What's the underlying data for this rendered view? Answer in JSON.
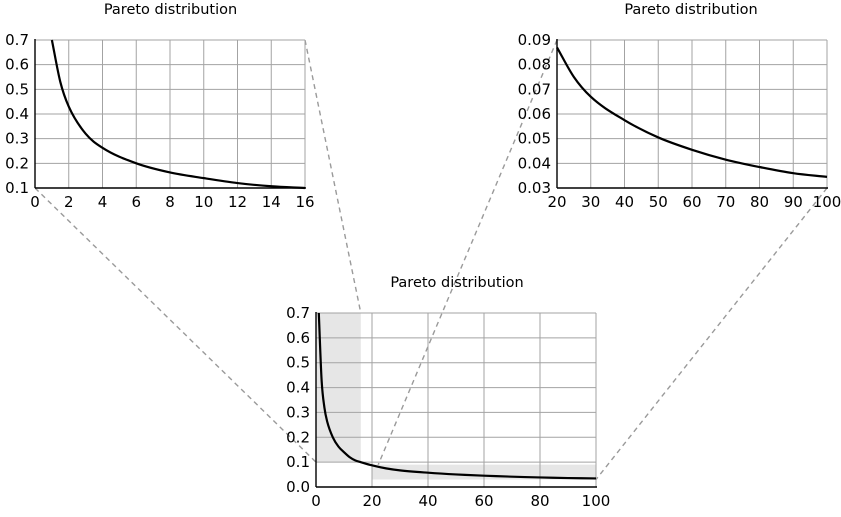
{
  "chart_data": [
    {
      "type": "line",
      "title": "Pareto distribution",
      "xlim": [
        0,
        16
      ],
      "ylim": [
        0.1,
        0.7
      ],
      "x_ticks": [
        0,
        2,
        4,
        6,
        8,
        10,
        12,
        14,
        16
      ],
      "y_ticks": [
        0.1,
        0.2,
        0.3,
        0.4,
        0.5,
        0.6,
        0.7
      ],
      "x_tick_labels": [
        "0",
        "2",
        "4",
        "6",
        "8",
        "10",
        "12",
        "14",
        "16"
      ],
      "y_tick_labels": [
        "0.1",
        "0.2",
        "0.3",
        "0.4",
        "0.5",
        "0.6",
        "0.7"
      ],
      "grid": true,
      "series": [
        {
          "x": [
            1,
            1.5,
            2,
            3,
            4,
            6,
            8,
            10,
            12,
            14,
            16
          ],
          "y": [
            0.7,
            0.53,
            0.43,
            0.32,
            0.263,
            0.2,
            0.163,
            0.14,
            0.12,
            0.107,
            0.1
          ]
        }
      ]
    },
    {
      "type": "line",
      "title": "Pareto distribution",
      "xlim": [
        20,
        100
      ],
      "ylim": [
        0.03,
        0.09
      ],
      "x_ticks": [
        20,
        30,
        40,
        50,
        60,
        70,
        80,
        90,
        100
      ],
      "y_ticks": [
        0.03,
        0.04,
        0.05,
        0.06,
        0.07,
        0.08,
        0.09
      ],
      "x_tick_labels": [
        "20",
        "30",
        "40",
        "50",
        "60",
        "70",
        "80",
        "90",
        "100"
      ],
      "y_tick_labels": [
        "0.03",
        "0.04",
        "0.05",
        "0.06",
        "0.07",
        "0.08",
        "0.09"
      ],
      "grid": true,
      "series": [
        {
          "x": [
            20,
            25,
            30,
            40,
            50,
            60,
            70,
            80,
            90,
            100
          ],
          "y": [
            0.087,
            0.075,
            0.067,
            0.0575,
            0.0505,
            0.0455,
            0.0415,
            0.0385,
            0.036,
            0.0345
          ]
        }
      ]
    },
    {
      "type": "line",
      "title": "Pareto distribution",
      "xlim": [
        0,
        100
      ],
      "ylim": [
        0.0,
        0.7
      ],
      "x_ticks": [
        0,
        20,
        40,
        60,
        80,
        100
      ],
      "y_ticks": [
        0.0,
        0.1,
        0.2,
        0.3,
        0.4,
        0.5,
        0.6,
        0.7
      ],
      "x_tick_labels": [
        "0",
        "20",
        "40",
        "60",
        "80",
        "100"
      ],
      "y_tick_labels": [
        "0.0",
        "0.1",
        "0.2",
        "0.3",
        "0.4",
        "0.5",
        "0.6",
        "0.7"
      ],
      "grid": true,
      "highlighted_ranges": [
        {
          "xlim": [
            0,
            16
          ],
          "ylim": [
            0.1,
            0.7
          ]
        },
        {
          "xlim": [
            20,
            100
          ],
          "ylim": [
            0.03,
            0.09
          ]
        }
      ],
      "series": [
        {
          "x": [
            1,
            2,
            3,
            4,
            6,
            8,
            10,
            12,
            14,
            16,
            20,
            25,
            30,
            40,
            50,
            60,
            70,
            80,
            90,
            100
          ],
          "y": [
            0.7,
            0.43,
            0.32,
            0.263,
            0.2,
            0.163,
            0.14,
            0.12,
            0.107,
            0.1,
            0.087,
            0.075,
            0.067,
            0.0575,
            0.0505,
            0.0455,
            0.0415,
            0.0385,
            0.036,
            0.0345
          ]
        }
      ]
    }
  ]
}
